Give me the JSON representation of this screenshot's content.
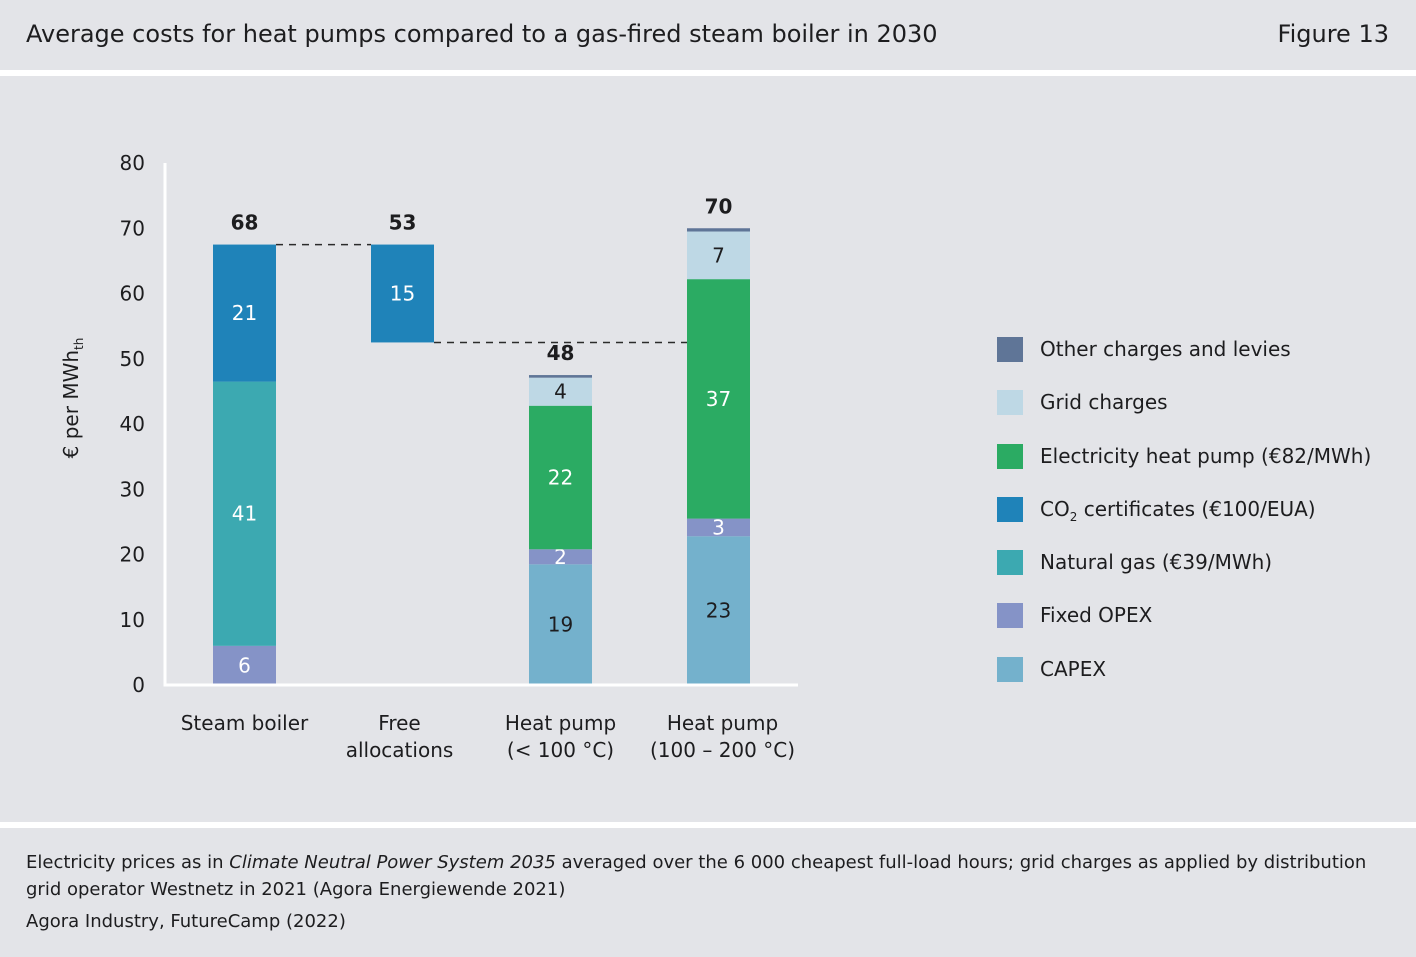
{
  "header": {
    "title": "Average costs for heat pumps compared to a gas-fired steam boiler in 2030",
    "figure_label": "Figure 13"
  },
  "footnote": {
    "pre": "Electricity prices as in ",
    "italic": "Climate Neutral Power System 2035",
    "post": " averaged over the 6 000 cheapest full-load hours; grid charges as applied by distribution grid operator Westnetz in 2021 (Agora Energiewende 2021)"
  },
  "source": "Agora Industry, FutureCamp (2022)",
  "legend": [
    {
      "key": "other",
      "pre": "Other charges and levies",
      "sub": "",
      "post": ""
    },
    {
      "key": "grid",
      "pre": "Grid charges",
      "sub": "",
      "post": ""
    },
    {
      "key": "electricity",
      "pre": "Electricity heat pump (€82/MWh)",
      "sub": "",
      "post": ""
    },
    {
      "key": "co2",
      "pre": "CO",
      "sub": "2",
      "post": " certificates (€100/EUA)"
    },
    {
      "key": "gas",
      "pre": "Natural gas (€39/MWh)",
      "sub": "",
      "post": ""
    },
    {
      "key": "opex",
      "pre": "Fixed OPEX",
      "sub": "",
      "post": ""
    },
    {
      "key": "capex",
      "pre": "CAPEX",
      "sub": "",
      "post": ""
    }
  ],
  "colors": {
    "other": "#5f7597",
    "grid": "#bed8e5",
    "electricity": "#2bab63",
    "co2": "#1f83b9",
    "gas": "#3ca9b1",
    "opex": "#8593c7",
    "capex": "#74b1cc",
    "axis": "#ffffff",
    "text": "#1d1d1f"
  },
  "chart_data": {
    "type": "bar",
    "stacked": true,
    "ylabel_main": "€ per MWh",
    "ylabel_sub": "th",
    "ylim": [
      0,
      80
    ],
    "yticks": [
      0,
      10,
      20,
      30,
      40,
      50,
      60,
      70,
      80
    ],
    "categories": [
      {
        "lines": [
          "Steam boiler"
        ]
      },
      {
        "lines": [
          "Free",
          "allocations"
        ]
      },
      {
        "lines": [
          "Heat pump",
          "(< 100 °C)"
        ]
      },
      {
        "lines": [
          "Heat pump",
          "(100 – 200 °C)"
        ]
      }
    ],
    "bars": [
      {
        "total": 68,
        "segments": [
          {
            "key": "opex",
            "from": 0,
            "to": 6,
            "label": "6",
            "label_color": "#ffffff"
          },
          {
            "key": "gas",
            "from": 6,
            "to": 46.5,
            "label": "41",
            "label_color": "#ffffff"
          },
          {
            "key": "co2",
            "from": 46.5,
            "to": 67.5,
            "label": "21",
            "label_color": "#ffffff"
          }
        ]
      },
      {
        "total": 53,
        "segments": [
          {
            "key": "co2",
            "from": 52.5,
            "to": 67.5,
            "label": "15",
            "label_color": "#ffffff"
          }
        ]
      },
      {
        "total": 48,
        "segments": [
          {
            "key": "capex",
            "from": 0,
            "to": 18.5,
            "label": "19",
            "label_color": "#1d1d1f"
          },
          {
            "key": "opex",
            "from": 18.5,
            "to": 20.8,
            "label": "2",
            "label_color": "#ffffff"
          },
          {
            "key": "electricity",
            "from": 20.8,
            "to": 42.8,
            "label": "22",
            "label_color": "#ffffff"
          },
          {
            "key": "grid",
            "from": 42.8,
            "to": 47.1,
            "label": "4",
            "label_color": "#1d1d1f"
          },
          {
            "key": "other",
            "from": 47.1,
            "to": 47.5,
            "label": "",
            "label_color": "#1d1d1f"
          }
        ]
      },
      {
        "total": 70,
        "segments": [
          {
            "key": "capex",
            "from": 0,
            "to": 22.8,
            "label": "23",
            "label_color": "#1d1d1f"
          },
          {
            "key": "opex",
            "from": 22.8,
            "to": 25.5,
            "label": "3",
            "label_color": "#ffffff"
          },
          {
            "key": "electricity",
            "from": 25.5,
            "to": 62.2,
            "label": "37",
            "label_color": "#ffffff"
          },
          {
            "key": "grid",
            "from": 62.2,
            "to": 69.5,
            "label": "7",
            "label_color": "#1d1d1f"
          },
          {
            "key": "other",
            "from": 69.5,
            "to": 70,
            "label": "",
            "label_color": "#1d1d1f"
          }
        ]
      }
    ],
    "connectors": [
      {
        "from_bar": 0,
        "to_bar": 1,
        "y": 67.5
      },
      {
        "from_bar": 1,
        "to_bar": 3,
        "y": 52.5
      }
    ]
  }
}
